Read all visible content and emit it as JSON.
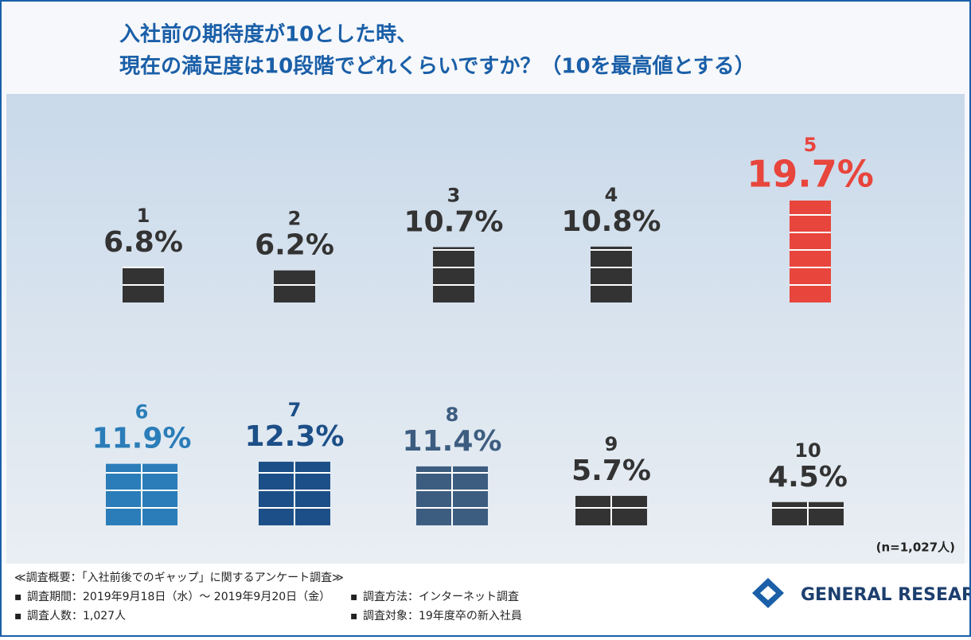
{
  "title": [
    "入社前の期待度が10とした時、",
    "現在の満足度は10段階でどれくらいですか？（10を最高値とする）"
  ],
  "chart_data": {
    "type": "bar",
    "categories": [
      "1",
      "2",
      "3",
      "4",
      "5",
      "6",
      "7",
      "8",
      "9",
      "10"
    ],
    "values": [
      6.8,
      6.2,
      10.7,
      10.8,
      19.7,
      11.9,
      12.3,
      11.4,
      5.7,
      4.5
    ],
    "value_labels": [
      "6.8%",
      "6.2%",
      "10.7%",
      "10.8%",
      "19.7%",
      "11.9%",
      "12.3%",
      "11.4%",
      "5.7%",
      "4.5%"
    ],
    "colors": [
      "#333333",
      "#333333",
      "#333333",
      "#333333",
      "#e8453c",
      "#2a7db8",
      "#1c4f87",
      "#3d5d80",
      "#333333",
      "#333333"
    ],
    "note": "(n=1,027人)"
  },
  "footer": {
    "heading": "≪調査概要：「入社前後でのギャップ」に関するアンケート調査≫",
    "items": [
      "調査期間：2019年9月18日（水）～ 2019年9月20日（金）",
      "調査方法：インターネット調査",
      "調査人数：1,027人",
      "調査対象：19年度卒の新入社員"
    ]
  },
  "logo": "GENERAL RESEARCH"
}
